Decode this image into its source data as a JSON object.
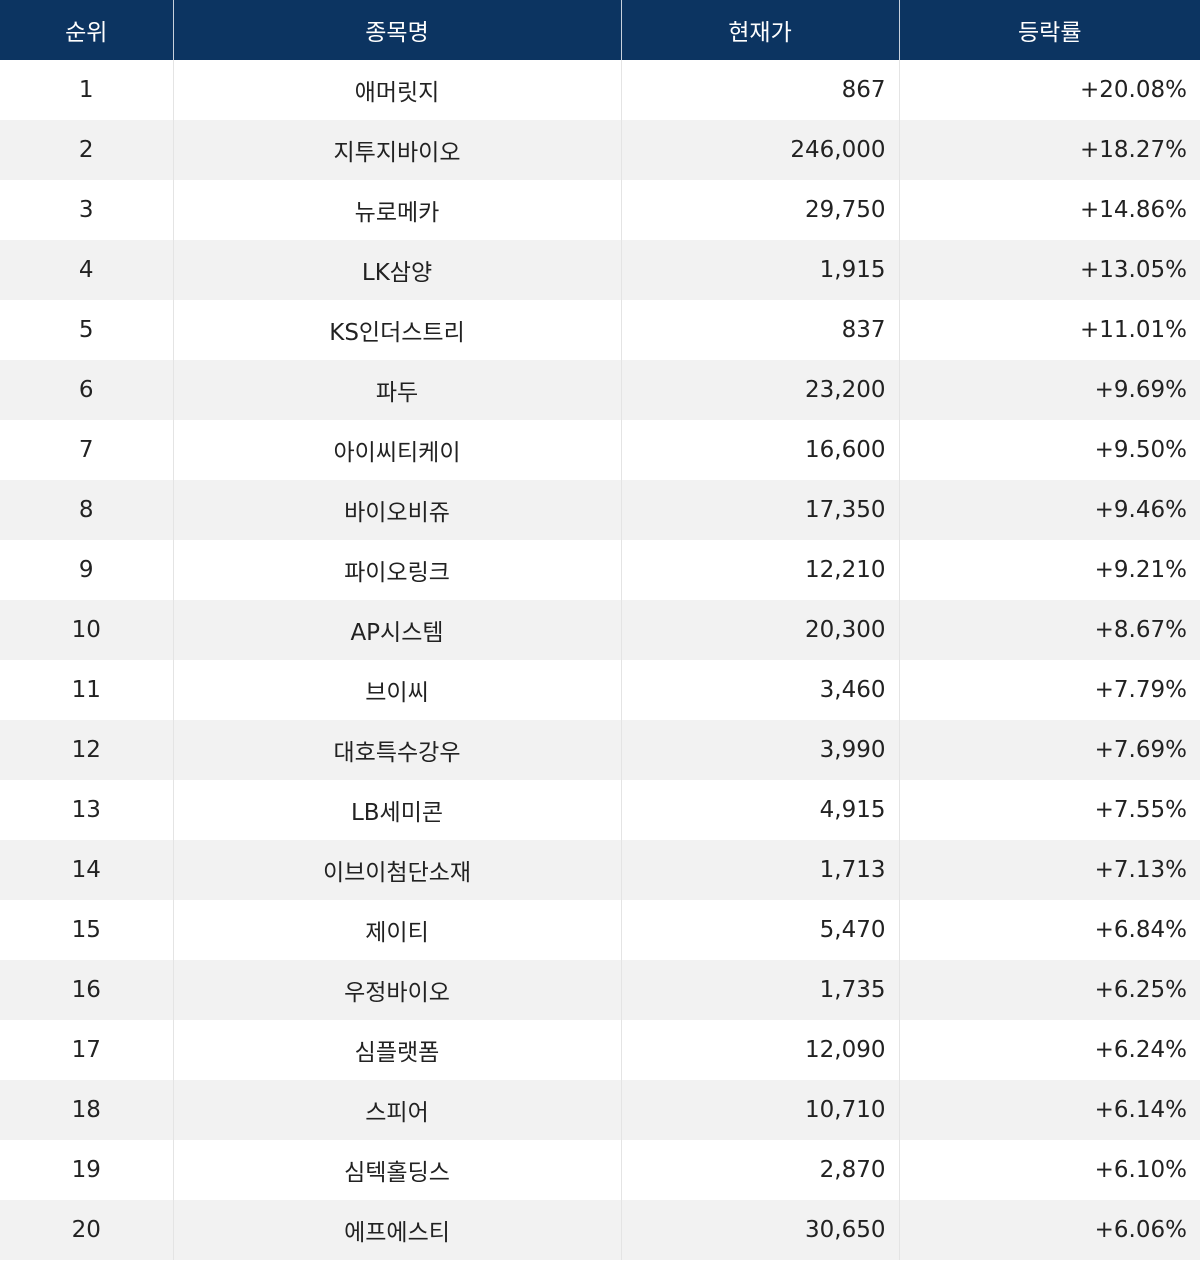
{
  "table": {
    "header": [
      "순위",
      "종목명",
      "현재가",
      "등락률"
    ],
    "rows": [
      [
        "1",
        "애머릿지",
        "867",
        "+20.08%"
      ],
      [
        "2",
        "지투지바이오",
        "246,000",
        "+18.27%"
      ],
      [
        "3",
        "뉴로메카",
        "29,750",
        "+14.86%"
      ],
      [
        "4",
        "LK삼양",
        "1,915",
        "+13.05%"
      ],
      [
        "5",
        "KS인더스트리",
        "837",
        "+11.01%"
      ],
      [
        "6",
        "파두",
        "23,200",
        "+9.69%"
      ],
      [
        "7",
        "아이씨티케이",
        "16,600",
        "+9.50%"
      ],
      [
        "8",
        "바이오비쥬",
        "17,350",
        "+9.46%"
      ],
      [
        "9",
        "파이오링크",
        "12,210",
        "+9.21%"
      ],
      [
        "10",
        "AP시스템",
        "20,300",
        "+8.67%"
      ],
      [
        "11",
        "브이씨",
        "3,460",
        "+7.79%"
      ],
      [
        "12",
        "대호특수강우",
        "3,990",
        "+7.69%"
      ],
      [
        "13",
        "LB세미콘",
        "4,915",
        "+7.55%"
      ],
      [
        "14",
        "이브이첨단소재",
        "1,713",
        "+7.13%"
      ],
      [
        "15",
        "제이티",
        "5,470",
        "+6.84%"
      ],
      [
        "16",
        "우정바이오",
        "1,735",
        "+6.25%"
      ],
      [
        "17",
        "심플랫폼",
        "12,090",
        "+6.24%"
      ],
      [
        "18",
        "스피어",
        "10,710",
        "+6.14%"
      ],
      [
        "19",
        "심텍홀딩스",
        "2,870",
        "+6.10%"
      ],
      [
        "20",
        "에프에스티",
        "30,650",
        "+6.06%"
      ]
    ]
  }
}
